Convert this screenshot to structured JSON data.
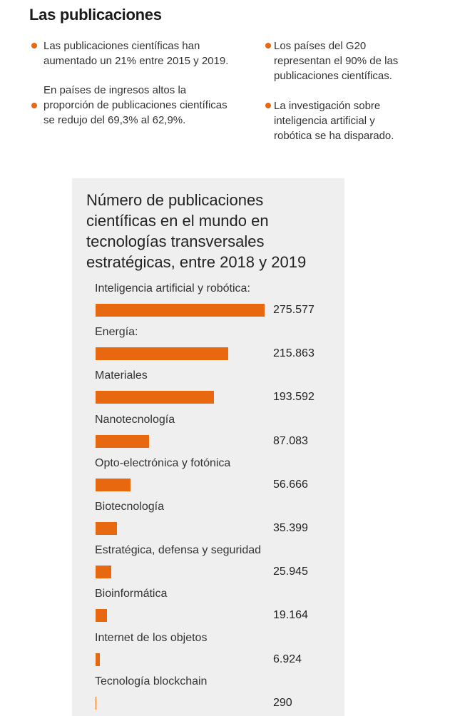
{
  "header": {
    "title": "Las publicaciones"
  },
  "bullets": [
    {
      "text_lines": [
        "Las publicaciones científicas han",
        "aumentado un 21% entre 2015 y 2019."
      ]
    },
    {
      "text_lines": [
        "En países de ingresos altos la",
        "proporción de publicaciones científicas",
        "se redujo del 69,3% al 62,9%."
      ]
    },
    {
      "text_lines": [
        "Los países del G20",
        "representan el 90% de las",
        "publicaciones científicas."
      ]
    },
    {
      "text_lines": [
        "La investigación sobre",
        "inteligencia artificial y",
        "robótica se ha disparado."
      ]
    }
  ],
  "colors": {
    "accent": "#e8680f",
    "panel": "#efefef"
  },
  "chart_data": {
    "type": "bar",
    "orientation": "horizontal",
    "title": "Número de publicaciones científicas en el mundo en tecnologías transversales estratégicas, entre 2018 y 2019",
    "title_lines": [
      "Número de publicaciones",
      "científicas en el mundo en",
      "tecnologías transversales",
      "estratégicas, entre 2018 y 2019"
    ],
    "categories": [
      "Inteligencia artificial y robótica:",
      "Energía:",
      "Materiales",
      "Nanotecnología",
      "Opto-electrónica y fotónica",
      "Biotecnología",
      "Estratégica, defensa y seguridad",
      "Bioinformática",
      "Internet de los objetos",
      "Tecnología blockchain"
    ],
    "values": [
      275577,
      215863,
      193592,
      87083,
      56666,
      35399,
      25945,
      19164,
      6924,
      290
    ],
    "value_labels": [
      "275.577",
      "215.863",
      "193.592",
      "87.083",
      "56.666",
      "35.399",
      "25.945",
      "19.164",
      "6.924",
      "290"
    ]
  }
}
